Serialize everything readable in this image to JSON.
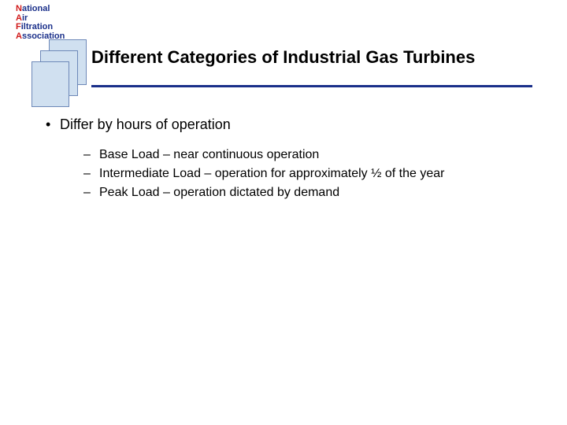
{
  "logo": {
    "line1_first": "N",
    "line1_rest": "ational",
    "line2_first": "A",
    "line2_rest": "ir",
    "line3_first": "F",
    "line3_rest": "iltration",
    "line4_first": "A",
    "line4_rest": "ssociation",
    "text_color": "#1a2f8a",
    "accent_color": "#d01818",
    "sheet_fill": "#d0e0f0",
    "sheet_border": "#6d88b8"
  },
  "title": {
    "text": "Different Categories of Industrial Gas Turbines",
    "fontsize": 22,
    "rule_color": "#1a2f8a"
  },
  "body": {
    "lvl1": {
      "bullet": "•",
      "text": "Differ by hours of operation",
      "fontsize": 18
    },
    "lvl2": [
      {
        "dash": "–",
        "text": "Base Load – near continuous operation"
      },
      {
        "dash": "–",
        "text": "Intermediate Load – operation for approximately ½ of the year"
      },
      {
        "dash": "–",
        "text": "Peak Load – operation dictated by demand"
      }
    ],
    "lvl2_fontsize": 16
  },
  "colors": {
    "background": "#ffffff",
    "text": "#000000"
  }
}
